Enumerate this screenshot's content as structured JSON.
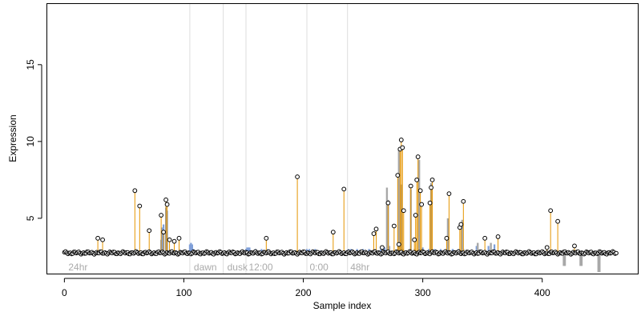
{
  "chart_data": {
    "type": "scatter",
    "title": "",
    "xlabel": "Sample index",
    "ylabel": "Expression",
    "xlim": [
      -15,
      480
    ],
    "ylim": [
      1.4,
      19.0
    ],
    "xticks": [
      0,
      100,
      200,
      300,
      400
    ],
    "yticks": [
      5,
      10,
      15
    ],
    "grid": false,
    "baseline": 2.75,
    "region_boundaries": [
      105,
      133,
      152,
      203,
      237
    ],
    "region_labels": [
      {
        "x": 2,
        "text": "24hr"
      },
      {
        "x": 107,
        "text": "dawn"
      },
      {
        "x": 135,
        "text": "dusk"
      },
      {
        "x": 153,
        "text": "12:00"
      },
      {
        "x": 204,
        "text": "0:00"
      },
      {
        "x": 238,
        "text": "48hr"
      }
    ],
    "blue_segments": [
      [
        81,
        3.6
      ],
      [
        82,
        4.4
      ],
      [
        83,
        4.6
      ],
      [
        85,
        5.7
      ],
      [
        86,
        5.5
      ],
      [
        105,
        3.3
      ],
      [
        106,
        3.4
      ],
      [
        107,
        3.3
      ],
      [
        108,
        3.0
      ],
      [
        152,
        3.0
      ],
      [
        153,
        3.1
      ],
      [
        154,
        3.1
      ],
      [
        155,
        3.1
      ],
      [
        160,
        3.0
      ],
      [
        165,
        3.0
      ],
      [
        170,
        3.0
      ],
      [
        203,
        3.0
      ],
      [
        205,
        3.0
      ],
      [
        210,
        3.0
      ],
      [
        215,
        2.9
      ],
      [
        220,
        2.9
      ],
      [
        238,
        3.0
      ],
      [
        240,
        3.0
      ],
      [
        245,
        3.0
      ],
      [
        250,
        3.0
      ],
      [
        255,
        3.0
      ],
      [
        260,
        3.0
      ],
      [
        265,
        3.0
      ],
      [
        268,
        3.1
      ],
      [
        300,
        3.1
      ],
      [
        305,
        3.0
      ],
      [
        310,
        3.0
      ],
      [
        315,
        3.0
      ],
      [
        320,
        3.0
      ],
      [
        325,
        3.0
      ],
      [
        330,
        3.0
      ],
      [
        345,
        3.2
      ],
      [
        355,
        3.2
      ],
      [
        360,
        3.3
      ]
    ],
    "gray_segments": [
      [
        270,
        7.0
      ],
      [
        271,
        6.2
      ],
      [
        272,
        3.2
      ],
      [
        280,
        9.5
      ],
      [
        282,
        7.2
      ],
      [
        283,
        3.0
      ],
      [
        290,
        6.9
      ],
      [
        293,
        3.0
      ],
      [
        297,
        8.8
      ],
      [
        298,
        3.0
      ],
      [
        307,
        7.3
      ],
      [
        308,
        3.0
      ],
      [
        321,
        5.0
      ],
      [
        322,
        2.9
      ],
      [
        333,
        4.9
      ],
      [
        334,
        3.0
      ],
      [
        346,
        3.4
      ],
      [
        357,
        3.4
      ],
      [
        418,
        1.9
      ],
      [
        419,
        1.9
      ],
      [
        432,
        1.9
      ],
      [
        433,
        1.9
      ],
      [
        447,
        1.5
      ],
      [
        448,
        1.5
      ]
    ],
    "highlighted_points": [
      [
        28,
        3.7
      ],
      [
        32,
        3.6
      ],
      [
        59,
        6.8
      ],
      [
        63,
        5.8
      ],
      [
        71,
        4.2
      ],
      [
        81,
        5.2
      ],
      [
        83,
        4.1
      ],
      [
        85,
        6.2
      ],
      [
        86,
        5.9
      ],
      [
        88,
        3.6
      ],
      [
        92,
        3.5
      ],
      [
        96,
        3.7
      ],
      [
        169,
        3.7
      ],
      [
        195,
        7.7
      ],
      [
        225,
        4.1
      ],
      [
        234,
        6.9
      ],
      [
        259,
        4.0
      ],
      [
        261,
        4.3
      ],
      [
        266,
        3.1
      ],
      [
        271,
        6.0
      ],
      [
        276,
        4.5
      ],
      [
        279,
        7.8
      ],
      [
        280,
        3.3
      ],
      [
        281,
        9.5
      ],
      [
        282,
        10.1
      ],
      [
        283,
        9.6
      ],
      [
        284,
        5.5
      ],
      [
        290,
        7.1
      ],
      [
        293,
        3.6
      ],
      [
        294,
        5.2
      ],
      [
        295,
        7.5
      ],
      [
        296,
        9.0
      ],
      [
        298,
        6.8
      ],
      [
        299,
        5.9
      ],
      [
        306,
        6.0
      ],
      [
        307,
        7.0
      ],
      [
        308,
        7.5
      ],
      [
        320,
        3.7
      ],
      [
        322,
        6.6
      ],
      [
        331,
        4.4
      ],
      [
        332,
        4.6
      ],
      [
        334,
        6.1
      ],
      [
        352,
        3.7
      ],
      [
        363,
        3.8
      ],
      [
        404,
        3.1
      ],
      [
        407,
        5.5
      ],
      [
        413,
        4.8
      ],
      [
        427,
        3.2
      ]
    ]
  }
}
